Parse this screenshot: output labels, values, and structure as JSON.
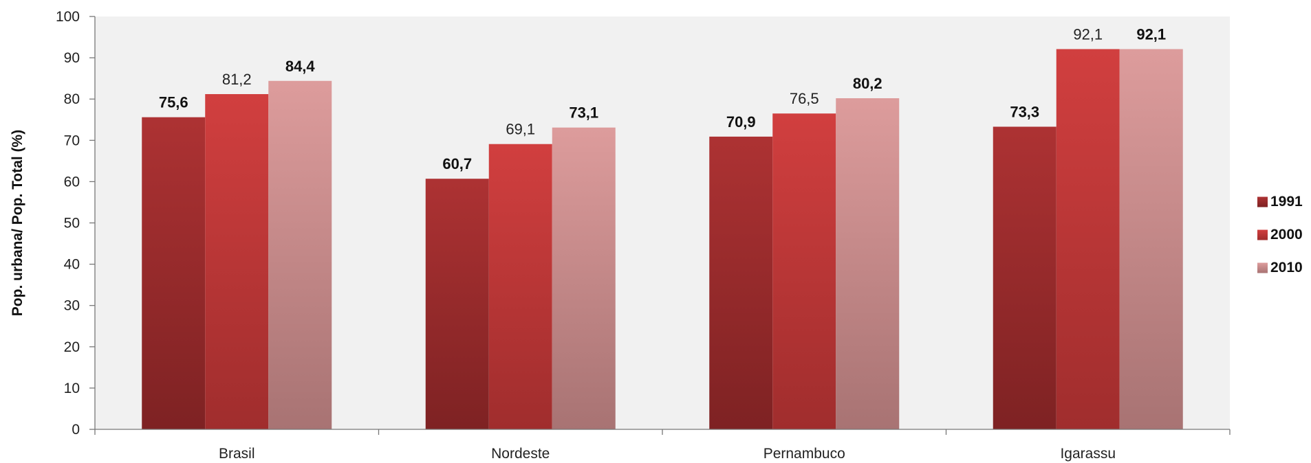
{
  "chart_data": {
    "type": "bar",
    "categories": [
      "Brasil",
      "Nordeste",
      "Pernambuco",
      "Igarassu"
    ],
    "series": [
      {
        "name": "1991",
        "values": [
          75.6,
          60.7,
          70.9,
          73.3
        ],
        "labels": [
          "75,6",
          "60,7",
          "70,9",
          "73,3"
        ],
        "bold_labels": true,
        "color_top": "#ad3233",
        "color_bottom": "#7e2223"
      },
      {
        "name": "2000",
        "values": [
          81.2,
          69.1,
          76.5,
          92.1
        ],
        "labels": [
          "81,2",
          "69,1",
          "76,5",
          "92,1"
        ],
        "bold_labels": false,
        "color_top": "#d13f3f",
        "color_bottom": "#a02d2d"
      },
      {
        "name": "2010",
        "values": [
          84.4,
          73.1,
          80.2,
          92.1
        ],
        "labels": [
          "84,4",
          "73,1",
          "80,2",
          "92,1"
        ],
        "bold_labels": true,
        "color_top": "#dd9c9c",
        "color_bottom": "#a87373"
      }
    ],
    "ylabel": "Pop. urbana/ Pop. Total (%)",
    "xlabel": "",
    "ylim": [
      0,
      100
    ],
    "yticks": [
      0,
      10,
      20,
      30,
      40,
      50,
      60,
      70,
      80,
      90,
      100
    ],
    "plot_background": "#f1f1f1",
    "grid": false,
    "legend_position": "right"
  }
}
